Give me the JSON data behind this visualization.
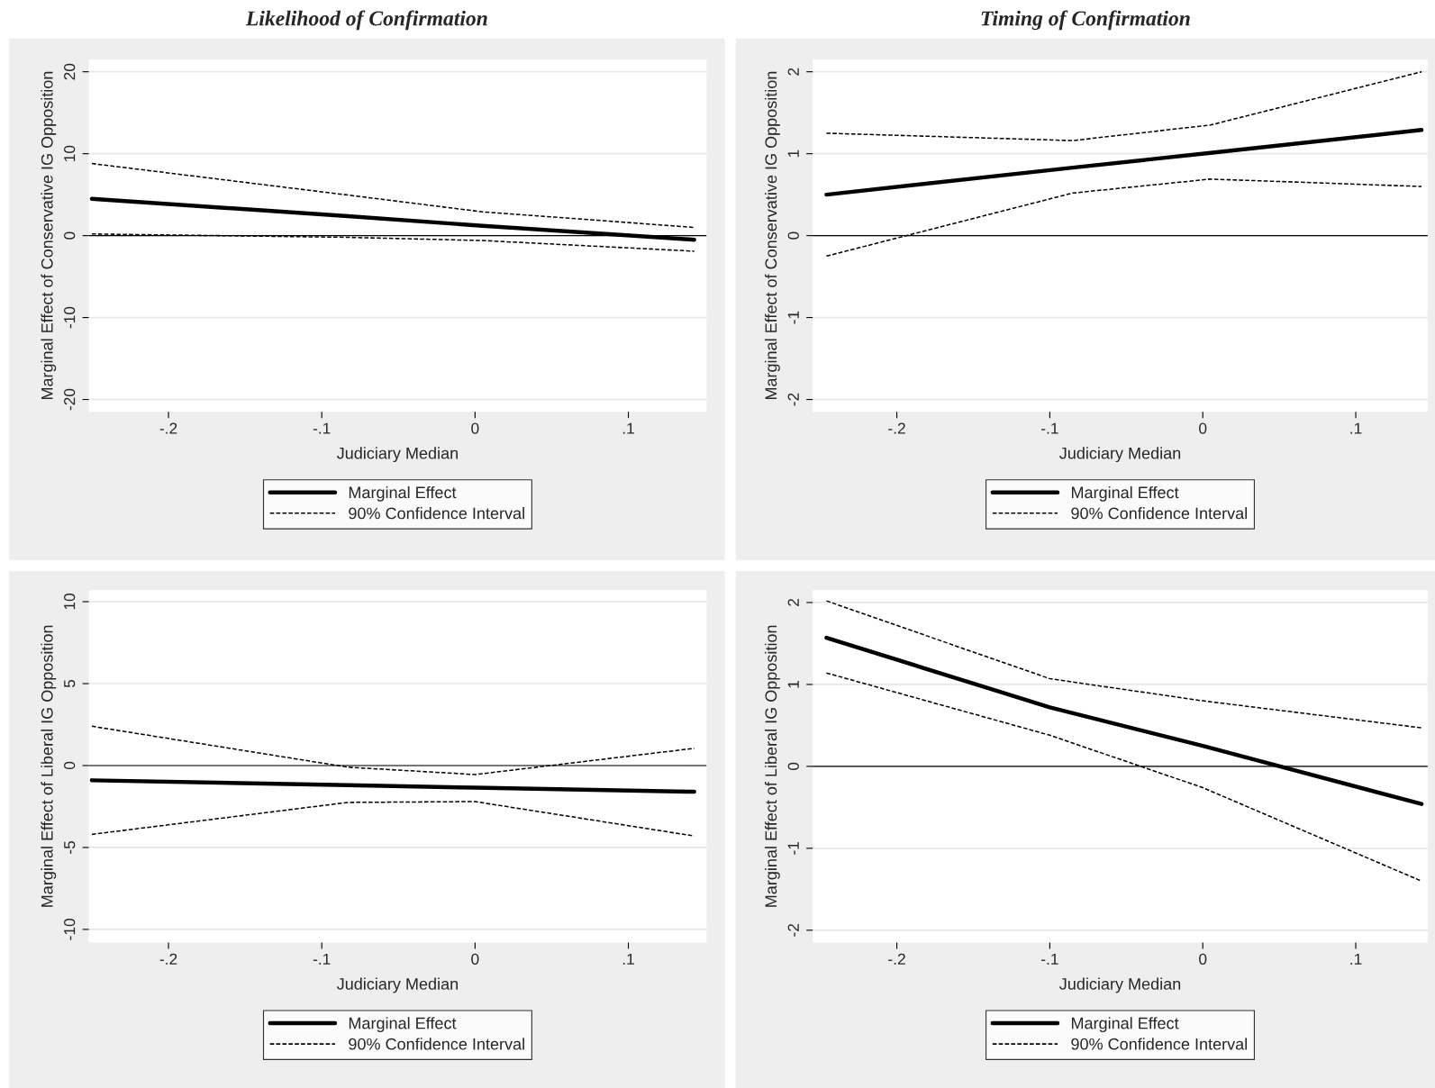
{
  "chart_data": [
    {
      "type": "line",
      "title": "Likelihood of Confirmation",
      "xlabel": "Judiciary Median",
      "ylabel": "Marginal Effect of Conservative IG Opposition",
      "xlim": [
        -0.252,
        0.151
      ],
      "ylim": [
        -21.5,
        21.5
      ],
      "xticks": [
        {
          "value": -0.2,
          "label": "-.2"
        },
        {
          "value": -0.1,
          "label": "-.1"
        },
        0,
        {
          "value": 0.1,
          "label": ".1"
        }
      ],
      "yticks": [
        -20,
        -10,
        0,
        10,
        20
      ],
      "grid": "y",
      "legend": "bottom",
      "ref_lines": [
        {
          "axis": "y",
          "value": 0,
          "color": "#000000"
        }
      ],
      "x": [
        -0.25,
        -0.085,
        0.005,
        0.143
      ],
      "series": [
        {
          "name": "Marginal Effect",
          "color": "#000000",
          "line_style": "solid",
          "values": [
            4.5,
            2.4,
            1.2,
            -0.5
          ]
        },
        {
          "name": "90% Confidence Interval",
          "color": "#000000",
          "line_style": "dashed",
          "values": [
            8.8,
            5.0,
            2.9,
            1.0
          ]
        },
        {
          "color": "#000000",
          "line_style": "dashed",
          "values": [
            0.2,
            -0.2,
            -0.6,
            -1.9
          ]
        }
      ]
    },
    {
      "type": "line",
      "title": "Timing of Confirmation",
      "xlabel": "Judiciary Median",
      "ylabel": "Marginal Effect of Conservative IG Opposition",
      "xlim": [
        -0.255,
        0.147
      ],
      "ylim": [
        -2.15,
        2.15
      ],
      "xticks": [
        {
          "value": -0.2,
          "label": "-.2"
        },
        {
          "value": -0.1,
          "label": "-.1"
        },
        0,
        {
          "value": 0.1,
          "label": ".1"
        }
      ],
      "yticks": [
        -2,
        -1,
        0,
        1,
        2
      ],
      "grid": "y",
      "legend": "bottom",
      "ref_lines": [
        {
          "axis": "y",
          "value": 0,
          "color": "#000000"
        }
      ],
      "x": [
        -0.246,
        -0.085,
        0.005,
        0.143
      ],
      "series": [
        {
          "name": "Marginal Effect",
          "color": "#000000",
          "line_style": "solid",
          "values": [
            0.5,
            0.83,
            1.01,
            1.29
          ]
        },
        {
          "name": "90% Confidence Interval",
          "color": "#000000",
          "line_style": "dashed",
          "values": [
            1.25,
            1.16,
            1.35,
            2.0
          ]
        },
        {
          "color": "#000000",
          "line_style": "dashed",
          "values": [
            -0.25,
            0.52,
            0.69,
            0.6
          ]
        }
      ]
    },
    {
      "type": "line",
      "xlabel": "Judiciary Median",
      "ylabel": "Marginal Effect of Liberal IG Opposition",
      "xlim": [
        -0.252,
        0.151
      ],
      "ylim": [
        -10.8,
        10.7
      ],
      "xticks": [
        {
          "value": -0.2,
          "label": "-.2"
        },
        {
          "value": -0.1,
          "label": "-.1"
        },
        0,
        {
          "value": 0.1,
          "label": ".1"
        }
      ],
      "yticks": [
        -10,
        -5,
        0,
        5,
        10
      ],
      "grid": "y",
      "legend": "bottom",
      "ref_lines": [
        {
          "axis": "y",
          "value": 0,
          "color": "#000000"
        }
      ],
      "x": [
        -0.25,
        -0.083,
        0.0,
        0.143
      ],
      "series": [
        {
          "name": "Marginal Effect",
          "color": "#000000",
          "line_style": "solid",
          "values": [
            -0.9,
            -1.2,
            -1.35,
            -1.6
          ]
        },
        {
          "name": "90% Confidence Interval",
          "color": "#000000",
          "line_style": "dashed",
          "values": [
            2.4,
            -0.1,
            -0.55,
            1.05
          ]
        },
        {
          "color": "#000000",
          "line_style": "dashed",
          "values": [
            -4.2,
            -2.25,
            -2.2,
            -4.3
          ]
        }
      ]
    },
    {
      "type": "line",
      "xlabel": "Judiciary Median",
      "ylabel": "Marginal Effect of Liberal IG Opposition",
      "xlim": [
        -0.255,
        0.147
      ],
      "ylim": [
        -2.15,
        2.15
      ],
      "xticks": [
        {
          "value": -0.2,
          "label": "-.2"
        },
        {
          "value": -0.1,
          "label": "-.1"
        },
        0,
        {
          "value": 0.1,
          "label": ".1"
        }
      ],
      "yticks": [
        -2,
        -1,
        0,
        1,
        2
      ],
      "grid": "y",
      "legend": "bottom",
      "ref_lines": [
        {
          "axis": "y",
          "value": 0,
          "color": "#000000"
        }
      ],
      "x": [
        -0.246,
        -0.1,
        0.0,
        0.143
      ],
      "series": [
        {
          "name": "Marginal Effect",
          "color": "#000000",
          "line_style": "solid",
          "values": [
            1.57,
            0.72,
            0.25,
            -0.46
          ]
        },
        {
          "name": "90% Confidence Interval",
          "color": "#000000",
          "line_style": "dashed",
          "values": [
            2.02,
            1.07,
            0.8,
            0.47
          ]
        },
        {
          "color": "#000000",
          "line_style": "dashed",
          "values": [
            1.14,
            0.38,
            -0.26,
            -1.4
          ]
        }
      ]
    }
  ]
}
